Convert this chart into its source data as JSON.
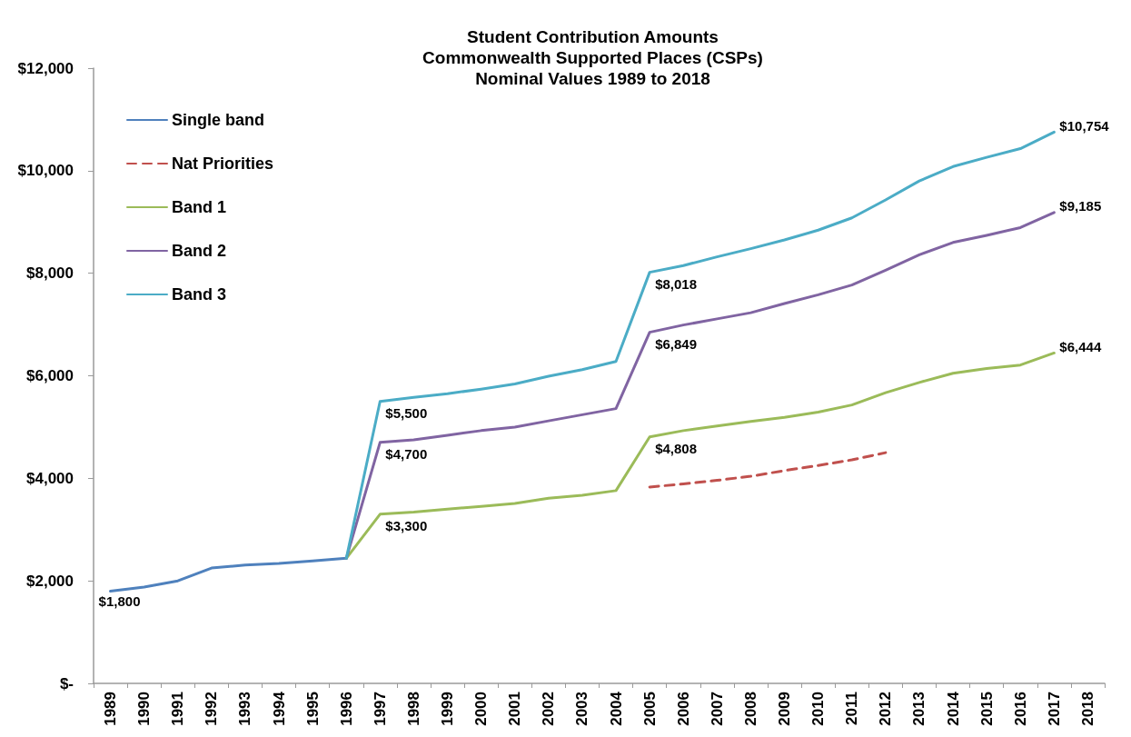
{
  "chart_data": {
    "type": "line",
    "title": "Student Contribution Amounts\nCommonwealth Supported Places (CSPs)\nNominal Values 1989 to 2018",
    "categories": [
      "1989",
      "1990",
      "1991",
      "1992",
      "1993",
      "1994",
      "1995",
      "1996",
      "1997",
      "1998",
      "1999",
      "2000",
      "2001",
      "2002",
      "2003",
      "2004",
      "2005",
      "2006",
      "2007",
      "2008",
      "2009",
      "2010",
      "2011",
      "2012",
      "2013",
      "2014",
      "2015",
      "2016",
      "2017",
      "2018"
    ],
    "series": [
      {
        "name": "Single band",
        "color": "#4f81bd",
        "values": [
          1800,
          1880,
          2000,
          2250,
          2310,
          2340,
          2390,
          2440,
          null,
          null,
          null,
          null,
          null,
          null,
          null,
          null,
          null,
          null,
          null,
          null,
          null,
          null,
          null,
          null,
          null,
          null,
          null,
          null,
          null,
          null
        ],
        "value_labels": [
          "$1,800",
          null,
          null,
          null,
          null,
          null,
          null,
          null,
          null,
          null,
          null,
          null,
          null,
          null,
          null,
          null,
          null,
          null,
          null,
          null,
          null,
          null,
          null,
          null,
          null,
          null,
          null,
          null,
          null,
          null
        ]
      },
      {
        "name": "Nat Priorities",
        "color": "#c0504d",
        "line_style": "dashed",
        "values": [
          null,
          null,
          null,
          null,
          null,
          null,
          null,
          null,
          null,
          null,
          null,
          null,
          null,
          null,
          null,
          null,
          3830,
          3890,
          3960,
          4040,
          4150,
          4250,
          4360,
          4500,
          null,
          null,
          null,
          null,
          null,
          null
        ]
      },
      {
        "name": "Band 1",
        "color": "#9bbb59",
        "values": [
          null,
          null,
          null,
          null,
          null,
          null,
          null,
          2440,
          3300,
          3340,
          3400,
          3450,
          3510,
          3610,
          3670,
          3760,
          4808,
          4930,
          5020,
          5110,
          5190,
          5290,
          5430,
          5670,
          5870,
          6050,
          6140,
          6210,
          6444,
          null
        ],
        "value_labels": [
          null,
          null,
          null,
          null,
          null,
          null,
          null,
          null,
          "$3,300",
          null,
          null,
          null,
          null,
          null,
          null,
          null,
          "$4,808",
          null,
          null,
          null,
          null,
          null,
          null,
          null,
          null,
          null,
          null,
          null,
          "$6,444",
          null
        ]
      },
      {
        "name": "Band 2",
        "color": "#8064a2",
        "values": [
          null,
          null,
          null,
          null,
          null,
          null,
          null,
          2440,
          4700,
          4750,
          4840,
          4930,
          5000,
          5120,
          5240,
          5360,
          6849,
          6990,
          7110,
          7230,
          7410,
          7580,
          7770,
          8060,
          8360,
          8600,
          8740,
          8890,
          9185,
          null
        ],
        "value_labels": [
          null,
          null,
          null,
          null,
          null,
          null,
          null,
          null,
          "$4,700",
          null,
          null,
          null,
          null,
          null,
          null,
          null,
          "$6,849",
          null,
          null,
          null,
          null,
          null,
          null,
          null,
          null,
          null,
          null,
          null,
          "$9,185",
          null
        ]
      },
      {
        "name": "Band 3",
        "color": "#4bacc6",
        "values": [
          null,
          null,
          null,
          null,
          null,
          null,
          null,
          2440,
          5500,
          5580,
          5650,
          5740,
          5840,
          5990,
          6120,
          6280,
          8018,
          8150,
          8320,
          8480,
          8650,
          8840,
          9080,
          9430,
          9800,
          10080,
          10260,
          10430,
          10754,
          null
        ],
        "value_labels": [
          null,
          null,
          null,
          null,
          null,
          null,
          null,
          null,
          "$5,500",
          null,
          null,
          null,
          null,
          null,
          null,
          null,
          "$8,018",
          null,
          null,
          null,
          null,
          null,
          null,
          null,
          null,
          null,
          null,
          null,
          "$10,754",
          null
        ]
      }
    ],
    "ylim": [
      0,
      12000
    ],
    "yticks": [
      {
        "value": 0,
        "label": "$-"
      },
      {
        "value": 2000,
        "label": "$2,000"
      },
      {
        "value": 4000,
        "label": "$4,000"
      },
      {
        "value": 6000,
        "label": "$6,000"
      },
      {
        "value": 8000,
        "label": "$8,000"
      },
      {
        "value": 10000,
        "label": "$10,000"
      },
      {
        "value": 12000,
        "label": "$12,000"
      }
    ],
    "grid": false,
    "legend": "top left",
    "marker": "none"
  }
}
